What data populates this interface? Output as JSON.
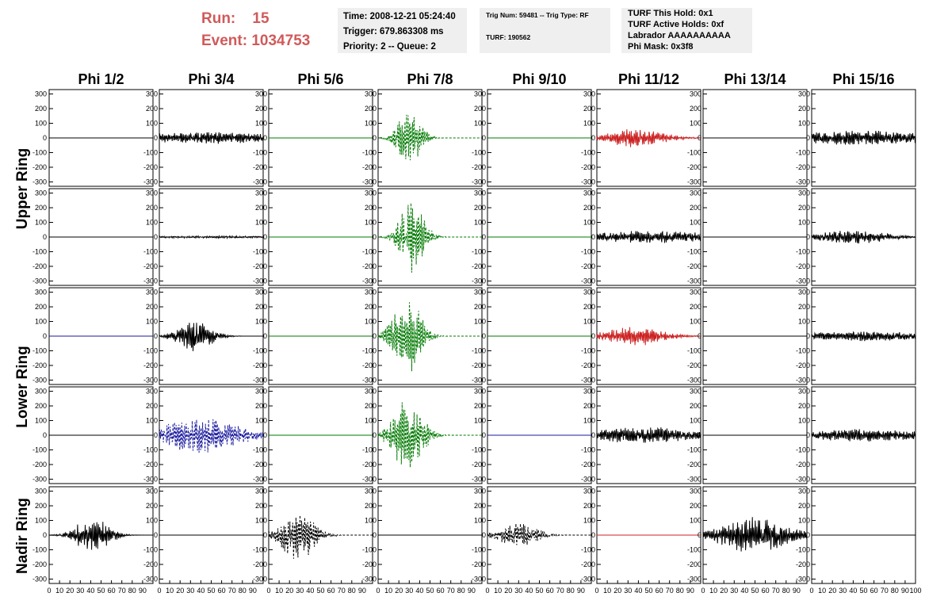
{
  "header": {
    "run_label": "Run:",
    "run_value": "15",
    "event_label": "Event:",
    "event_value": "1034753",
    "time": "Time: 2008-12-21 05:24:40",
    "trigger": "Trigger: 679.863308 ms",
    "priority": "Priority: 2 -- Queue: 2",
    "trig_num": "Trig Num: 59481 -- Trig Type: RF",
    "turf": "TURF: 190562",
    "turf_this_hold": "TURF This Hold: 0x1",
    "turf_active_holds": "TURF Active Holds: 0xf",
    "labrador": "Labrador AAAAAAAAAA",
    "phi_mask": "Phi Mask: 0x3f8"
  },
  "chart_data": {
    "type": "line",
    "columns": [
      "Phi 1/2",
      "Phi 3/4",
      "Phi 5/6",
      "Phi 7/8",
      "Phi 9/10",
      "Phi 11/12",
      "Phi 13/14",
      "Phi 15/16"
    ],
    "ring_labels": [
      "Upper Ring",
      "Lower Ring",
      "Nadir Ring"
    ],
    "ylim": [
      -330,
      330
    ],
    "yticks": [
      -300,
      -200,
      -100,
      0,
      100,
      200,
      300
    ],
    "xlim": [
      0,
      100
    ],
    "xtick_labels": [
      "0",
      "10",
      "20",
      "30",
      "40",
      "50",
      "60",
      "70",
      "80",
      "90",
      "100"
    ],
    "colors": {
      "black": "#000000",
      "green": "#007a00",
      "red": "#cc2222",
      "blue": "#1a1aa0"
    },
    "rows": [
      [
        {
          "color": "black",
          "style": "solid",
          "amp": 0,
          "center": 50,
          "width": 100
        },
        {
          "color": "black",
          "style": "solid",
          "amp": 45,
          "center": 50,
          "width": 90
        },
        {
          "color": "green",
          "style": "solid",
          "amp": 0,
          "center": 50,
          "width": 100
        },
        {
          "color": "green",
          "style": "dashed",
          "amp": 200,
          "center": 30,
          "width": 14
        },
        {
          "color": "green",
          "style": "solid",
          "amp": 0,
          "center": 50,
          "width": 100
        },
        {
          "color": "red",
          "style": "solid",
          "amp": 65,
          "center": 38,
          "width": 35
        },
        {
          "color": "black",
          "style": "solid",
          "amp": 0,
          "center": 50,
          "width": 100
        },
        {
          "color": "black",
          "style": "solid",
          "amp": 55,
          "center": 50,
          "width": 90
        }
      ],
      [
        {
          "color": "black",
          "style": "solid",
          "amp": 0,
          "center": 50,
          "width": 100
        },
        {
          "color": "black",
          "style": "solid",
          "amp": 8,
          "center": 50,
          "width": 100
        },
        {
          "color": "green",
          "style": "solid",
          "amp": 0,
          "center": 50,
          "width": 100
        },
        {
          "color": "green",
          "style": "dashed",
          "amp": 250,
          "center": 33,
          "width": 15
        },
        {
          "color": "green",
          "style": "solid",
          "amp": 0,
          "center": 50,
          "width": 100
        },
        {
          "color": "black",
          "style": "solid",
          "amp": 45,
          "center": 50,
          "width": 90
        },
        {
          "color": "black",
          "style": "solid",
          "amp": 0,
          "center": 50,
          "width": 100
        },
        {
          "color": "black",
          "style": "solid",
          "amp": 50,
          "center": 40,
          "width": 40
        }
      ],
      [
        {
          "color": "blue",
          "style": "solid",
          "amp": 0,
          "center": 50,
          "width": 100
        },
        {
          "color": "black",
          "style": "solid",
          "amp": 110,
          "center": 35,
          "width": 20
        },
        {
          "color": "green",
          "style": "solid",
          "amp": 0,
          "center": 50,
          "width": 100
        },
        {
          "color": "green",
          "style": "dashed",
          "amp": 300,
          "center": 28,
          "width": 16
        },
        {
          "color": "green",
          "style": "solid",
          "amp": 0,
          "center": 50,
          "width": 100
        },
        {
          "color": "red",
          "style": "solid",
          "amp": 70,
          "center": 35,
          "width": 35
        },
        {
          "color": "black",
          "style": "solid",
          "amp": 0,
          "center": 50,
          "width": 100
        },
        {
          "color": "black",
          "style": "solid",
          "amp": 35,
          "center": 50,
          "width": 90
        }
      ],
      [
        {
          "color": "black",
          "style": "solid",
          "amp": 0,
          "center": 50,
          "width": 100
        },
        {
          "color": "blue",
          "style": "dashed",
          "amp": 130,
          "center": 40,
          "width": 45
        },
        {
          "color": "green",
          "style": "solid",
          "amp": 0,
          "center": 50,
          "width": 100
        },
        {
          "color": "green",
          "style": "dashed",
          "amp": 260,
          "center": 28,
          "width": 18
        },
        {
          "color": "blue",
          "style": "solid",
          "amp": 0,
          "center": 50,
          "width": 100
        },
        {
          "color": "black",
          "style": "solid",
          "amp": 60,
          "center": 45,
          "width": 60
        },
        {
          "color": "black",
          "style": "solid",
          "amp": 0,
          "center": 50,
          "width": 100
        },
        {
          "color": "black",
          "style": "solid",
          "amp": 45,
          "center": 50,
          "width": 90
        }
      ],
      [
        {
          "color": "black",
          "style": "solid",
          "amp": 125,
          "center": 42,
          "width": 20
        },
        {
          "color": "black",
          "style": "solid",
          "amp": 0,
          "center": 50,
          "width": 100
        },
        {
          "color": "black",
          "style": "dashed",
          "amp": 180,
          "center": 28,
          "width": 20
        },
        {
          "color": "black",
          "style": "solid",
          "amp": 0,
          "center": 50,
          "width": 100
        },
        {
          "color": "black",
          "style": "dashed",
          "amp": 90,
          "center": 30,
          "width": 22
        },
        {
          "color": "red",
          "style": "solid",
          "amp": 0,
          "center": 50,
          "width": 100
        },
        {
          "color": "black",
          "style": "solid",
          "amp": 130,
          "center": 50,
          "width": 40
        },
        {
          "color": "black",
          "style": "solid",
          "amp": 0,
          "center": 50,
          "width": 100
        }
      ]
    ]
  }
}
